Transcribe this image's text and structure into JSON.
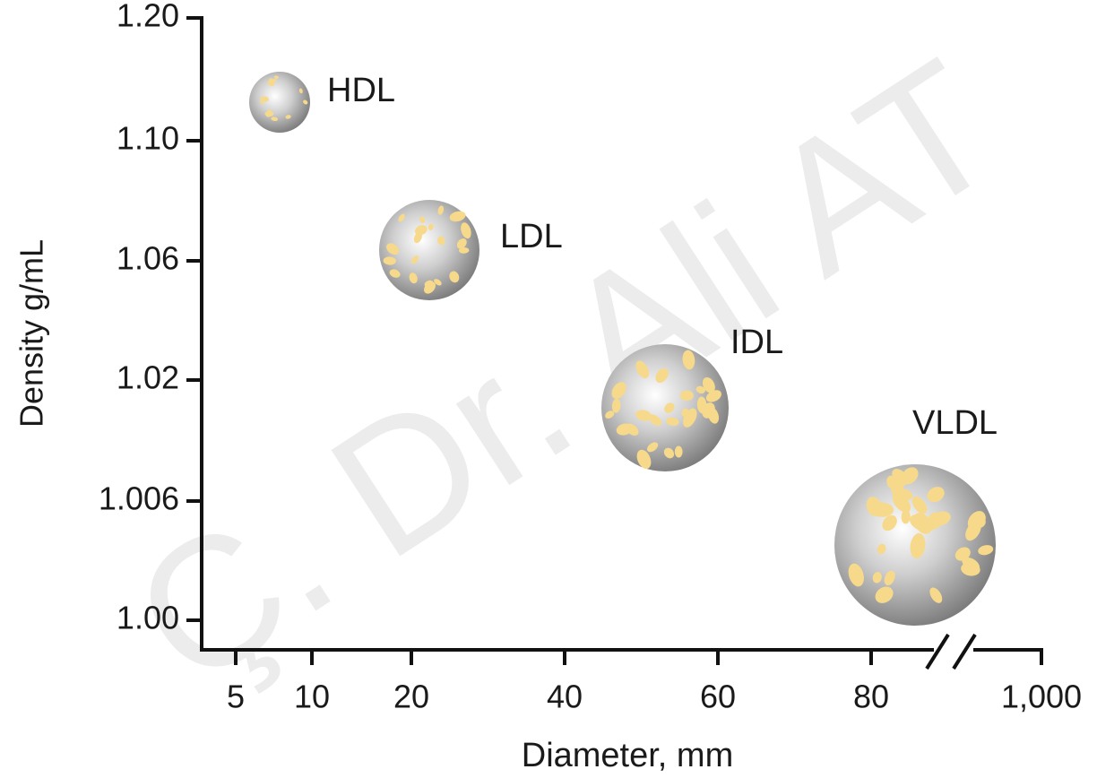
{
  "axes": {
    "y_label": "Density g/mL",
    "x_label": "Diameter, mm",
    "y_ticks": [
      "1.20",
      "1.10",
      "1.06",
      "1.02",
      "1.006",
      "1.00"
    ],
    "x_ticks": [
      "5",
      "10",
      "20",
      "40",
      "60",
      "80",
      "1,000"
    ]
  },
  "particles": [
    {
      "label": "HDL"
    },
    {
      "label": "LDL"
    },
    {
      "label": "IDL"
    },
    {
      "label": "VLDL"
    }
  ],
  "watermark": "Ç. Dr. Ali AT"
}
